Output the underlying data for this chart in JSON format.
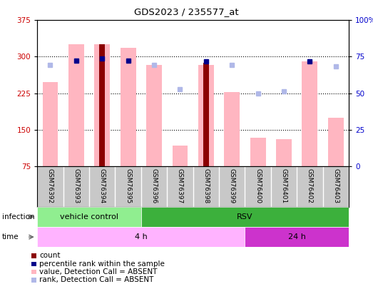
{
  "title": "GDS2023 / 235577_at",
  "samples": [
    "GSM76392",
    "GSM76393",
    "GSM76394",
    "GSM76395",
    "GSM76396",
    "GSM76397",
    "GSM76398",
    "GSM76399",
    "GSM76400",
    "GSM76401",
    "GSM76402",
    "GSM76403"
  ],
  "count_values": [
    null,
    null,
    325,
    null,
    null,
    null,
    287,
    null,
    null,
    null,
    null,
    null
  ],
  "count_bar_color": "#8B0000",
  "percentile_values": [
    null,
    292,
    296,
    292,
    null,
    null,
    290,
    null,
    null,
    null,
    291,
    null
  ],
  "percentile_color": "#00008B",
  "absent_value_bars": [
    248,
    325,
    325,
    318,
    283,
    118,
    283,
    228,
    133,
    130,
    291,
    175
  ],
  "absent_rank_dots": [
    283,
    292,
    null,
    null,
    283,
    233,
    null,
    283,
    224,
    229,
    null,
    280
  ],
  "absent_value_color": "#FFB6C1",
  "absent_rank_color": "#b0b8e8",
  "ylim_left": [
    75,
    375
  ],
  "ylim_right": [
    0,
    100
  ],
  "yticks_left": [
    75,
    150,
    225,
    300,
    375
  ],
  "yticks_right": [
    0,
    25,
    50,
    75,
    100
  ],
  "ytick_right_labels": [
    "0",
    "25",
    "50",
    "75",
    "100%"
  ],
  "left_tick_color": "#CC0000",
  "right_tick_color": "#0000CC",
  "infection_groups": [
    {
      "label": "vehicle control",
      "start": 0,
      "end": 4,
      "color": "#90EE90"
    },
    {
      "label": "RSV",
      "start": 4,
      "end": 12,
      "color": "#3CB03C"
    }
  ],
  "time_groups": [
    {
      "label": "4 h",
      "start": 0,
      "end": 8,
      "color": "#FFB3FF"
    },
    {
      "label": "24 h",
      "start": 8,
      "end": 12,
      "color": "#CC33CC"
    }
  ],
  "legend_items": [
    {
      "color": "#8B0000",
      "label": "count"
    },
    {
      "color": "#00008B",
      "label": "percentile rank within the sample"
    },
    {
      "color": "#FFB6C1",
      "label": "value, Detection Call = ABSENT"
    },
    {
      "color": "#b0b8e8",
      "label": "rank, Detection Call = ABSENT"
    }
  ],
  "cell_bg": "#C8C8C8",
  "cell_border": "#FFFFFF"
}
